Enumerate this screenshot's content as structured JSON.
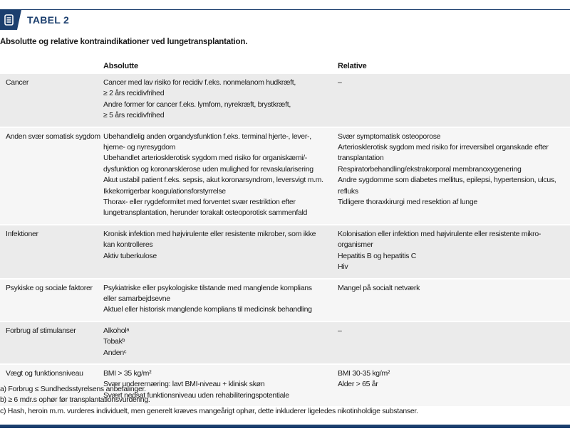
{
  "header": {
    "title": "TABEL 2",
    "icon": "document-list-icon",
    "accent": "#1c3f6e"
  },
  "subtitle": "Absolutte og relative kontraindikationer ved lungetransplantation.",
  "columns": {
    "absolute": "Absolutte",
    "relative": "Relative"
  },
  "rows": [
    {
      "category": "Cancer",
      "absolute": [
        "Cancer med lav risiko for recidiv f.eks. nonmelanom hudkræft,",
        "≥ 2 års recidivfrihed",
        "Andre former for cancer f.eks. lymfom, nyrekræft, brystkræft,",
        "≥ 5 års recidivfrihed"
      ],
      "relative": [
        "–"
      ]
    },
    {
      "category": "Anden svær somatisk sygdom",
      "absolute": [
        "Ubehandlelig anden organdysfunktion f.eks. terminal hjerte-, lever-,",
        "hjerne- og nyresygdom",
        "Ubehandlet arteriosklerotisk sygdom med risiko for organiskæmi/-",
        "dysfunktion og koronarsklerose uden mulighed for revaskularisering",
        "Akut ustabil patient f.eks. sepsis, akut koronarsyndrom, leversvigt m.m.",
        "Ikkekorrigerbar koagulationsforstyrrelse",
        "Thorax- eller rygdeformitet med forventet svær restriktion efter",
        "lungetransplantation, herunder torakalt osteoporotisk sammenfald"
      ],
      "relative": [
        "Svær symptomatisk osteoporose",
        "Arteriosklerotisk sygdom med risiko for irreversibel organskade efter",
        "transplantation",
        "Respiratorbehandling/ekstrakorporal membranoxygenering",
        "Andre sygdomme som diabetes mellitus, epilepsi, hypertension, ulcus,",
        "refluks",
        "Tidligere thoraxkirurgi med resektion af lunge"
      ]
    },
    {
      "category": "Infektioner",
      "absolute": [
        "Kronisk infektion med højvirulente eller resistente mikrober, som ikke",
        "kan kontrolleres",
        "Aktiv tuberkulose"
      ],
      "relative": [
        "Kolonisation eller infektion med højvirulente eller resistente mikro-",
        "organismer",
        "Hepatitis B og hepatitis C",
        "Hiv"
      ]
    },
    {
      "category": "Psykiske og sociale faktorer",
      "absolute": [
        "Psykiatriske eller psykologiske tilstande med manglende komplians",
        "eller samarbejdsevne",
        "Aktuel eller historisk manglende komplians til medicinsk behandling"
      ],
      "relative": [
        "Mangel på socialt netværk"
      ]
    },
    {
      "category": "Forbrug af stimulanser",
      "absolute": [
        "Alkoholᵃ",
        "Tobakᵇ",
        "Andenᶜ"
      ],
      "relative": [
        "–"
      ]
    },
    {
      "category": "Vægt og funktionsniveau",
      "absolute": [
        "BMI > 35 kg/m²",
        "Svær underernæring: lavt BMI-niveau + klinisk skøn",
        "Svært nedsat funktionsniveau uden rehabiliteringspotentiale"
      ],
      "relative": [
        "BMI 30-35 kg/m²",
        "Alder > 65 år"
      ]
    }
  ],
  "footnotes": [
    "a) Forbrug ≤ Sundhedsstyrelsens anbefalinger.",
    "b) ≥ 6 mdr.s ophør før transplantationsvurdering.",
    "c) Hash, heroin m.m. vurderes individuelt, men generelt kræves mangeårigt ophør, dette inkluderer ligeledes nikotinholdige substanser."
  ]
}
